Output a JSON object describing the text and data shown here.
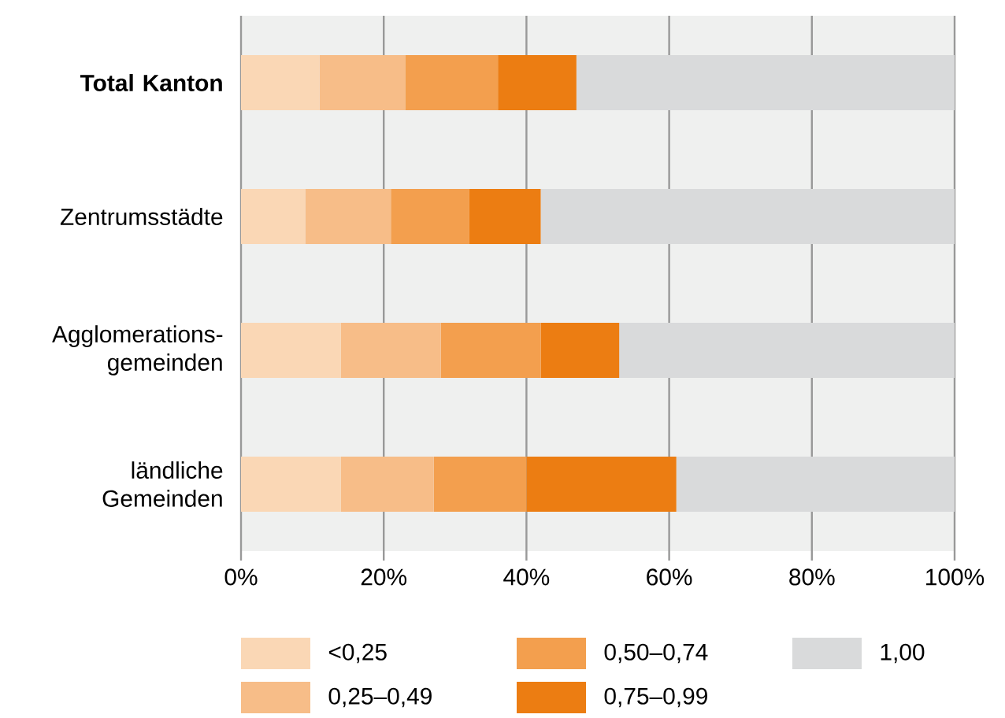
{
  "chart_data": {
    "type": "bar",
    "orientation": "horizontal",
    "stacked": true,
    "categories": [
      "**Total Kanton**",
      "Zentrumsstädte",
      "Agglomerations-gemeinden",
      "ländliche Gemeinden"
    ],
    "series": [
      {
        "name": "<0,25",
        "color": "#fad7b5",
        "values": [
          11,
          9,
          14,
          14
        ]
      },
      {
        "name": "0,25–0,49",
        "color": "#f7bd88",
        "values": [
          12,
          12,
          14,
          13
        ]
      },
      {
        "name": "0,50–0,74",
        "color": "#f39f4e",
        "values": [
          13,
          11,
          14,
          13
        ]
      },
      {
        "name": "0,75–0,99",
        "color": "#ec7d12",
        "values": [
          11,
          10,
          11,
          21
        ]
      },
      {
        "name": "1,00",
        "color": "#d9dadb",
        "values": [
          53,
          58,
          47,
          39
        ]
      }
    ],
    "xlim": [
      0,
      100
    ],
    "xticks": [
      {
        "value": 0,
        "label": "0%"
      },
      {
        "value": 20,
        "label": "20%"
      },
      {
        "value": 40,
        "label": "40%"
      },
      {
        "value": 60,
        "label": "60%"
      },
      {
        "value": 80,
        "label": "80%"
      },
      {
        "value": 100,
        "label": "100%"
      }
    ],
    "grid": "x",
    "legend": "bottom"
  }
}
